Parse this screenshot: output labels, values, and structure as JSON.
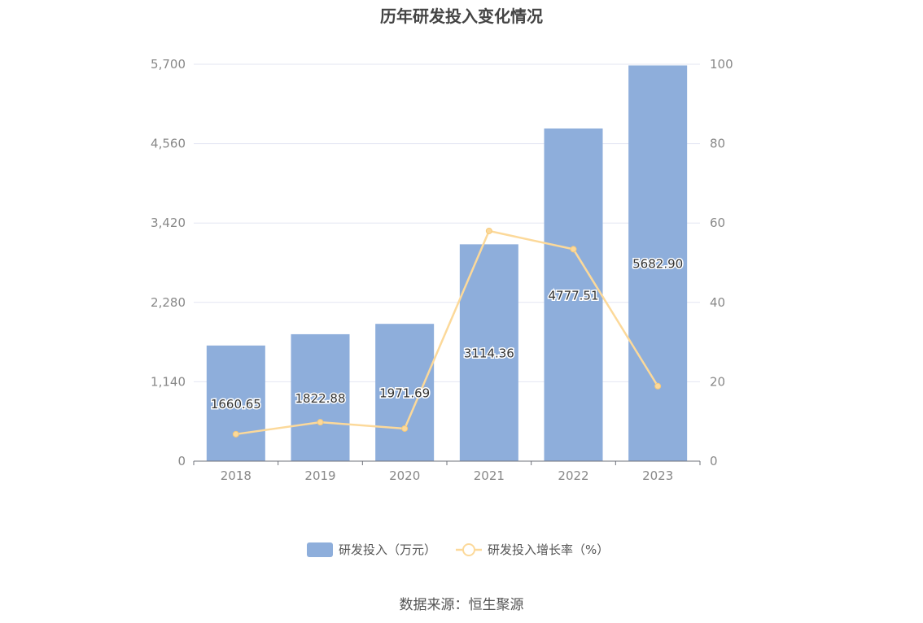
{
  "chart_data": {
    "type": "bar",
    "title": "历年研发投入变化情况",
    "categories": [
      "2018",
      "2019",
      "2020",
      "2021",
      "2022",
      "2023"
    ],
    "series": [
      {
        "name": "研发投入（万元）",
        "type": "bar",
        "axis": "left",
        "values": [
          1660.65,
          1822.88,
          1971.69,
          3114.36,
          4777.51,
          5682.9
        ],
        "labels": [
          "1660.65",
          "1822.88",
          "1971.69",
          "3114.36",
          "4777.51",
          "5682.90"
        ],
        "color": "#8eaedb"
      },
      {
        "name": "研发投入增长率（%）",
        "type": "line",
        "axis": "right",
        "values": [
          6.8,
          9.8,
          8.2,
          58.0,
          53.4,
          18.9
        ],
        "color": "#fcd99a"
      }
    ],
    "y_left": {
      "min": 0,
      "max": 5700,
      "ticks": [
        "0",
        "1,140",
        "2,280",
        "3,420",
        "4,560",
        "5,700"
      ]
    },
    "y_right": {
      "min": 0,
      "max": 100,
      "ticks": [
        "0",
        "20",
        "40",
        "60",
        "80",
        "100"
      ]
    },
    "grid": true,
    "legend_position": "bottom-center"
  },
  "source": "数据来源：恒生聚源"
}
